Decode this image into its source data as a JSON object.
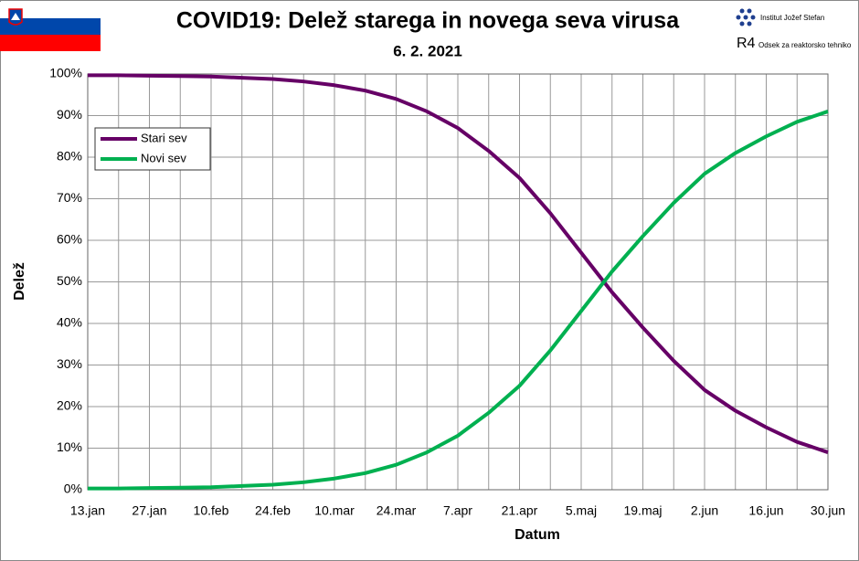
{
  "header": {
    "institute": "Institut Jožef Stefan",
    "department": "Odsek za reaktorsko tehniko",
    "logo_mark": "R4"
  },
  "chart_data": {
    "type": "line",
    "title": "COVID19: Delež starega in novega seva virusa",
    "subtitle": "6. 2. 2021",
    "x_label": "Datum",
    "y_label": "Delež",
    "categories": [
      "13.jan",
      null,
      "27.jan",
      null,
      "10.feb",
      null,
      "24.feb",
      null,
      "10.mar",
      null,
      "24.mar",
      null,
      "7.apr",
      null,
      "21.apr",
      null,
      "5.maj",
      null,
      "19.maj",
      null,
      "2.jun",
      null,
      "16.jun",
      null,
      "30.jun"
    ],
    "series": [
      {
        "name": "Stari sev",
        "color": "#660066",
        "values": [
          99.7,
          99.7,
          99.6,
          99.5,
          99.4,
          99.1,
          98.8,
          98.2,
          97.3,
          96,
          94,
          91,
          87,
          81.5,
          75,
          66.5,
          57,
          47.5,
          39,
          31,
          24,
          19,
          15,
          11.5,
          9
        ]
      },
      {
        "name": "Novi sev",
        "color": "#00b050",
        "values": [
          0.3,
          0.3,
          0.4,
          0.5,
          0.6,
          0.9,
          1.2,
          1.8,
          2.7,
          4,
          6,
          9,
          13,
          18.5,
          25,
          33.5,
          43,
          52.5,
          61,
          69,
          76,
          81,
          85,
          88.5,
          91
        ]
      }
    ],
    "ylim": [
      0,
      100
    ],
    "yticks": [
      {
        "value": 0,
        "label": "0%"
      },
      {
        "value": 10,
        "label": "10%"
      },
      {
        "value": 20,
        "label": "20%"
      },
      {
        "value": 30,
        "label": "30%"
      },
      {
        "value": 40,
        "label": "40%"
      },
      {
        "value": 50,
        "label": "50%"
      },
      {
        "value": 60,
        "label": "60%"
      },
      {
        "value": 70,
        "label": "70%"
      },
      {
        "value": 80,
        "label": "80%"
      },
      {
        "value": 90,
        "label": "90%"
      },
      {
        "value": 100,
        "label": "100%"
      }
    ],
    "grid": true
  }
}
